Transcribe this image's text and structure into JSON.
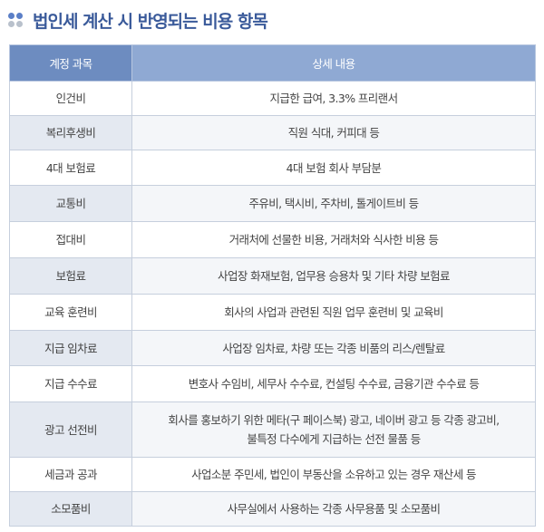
{
  "title": "법인세 계산 시 반영되는 비용 항목",
  "colors": {
    "title": "#3a5a9a",
    "header_left": "#6d8cc0",
    "header_right": "#8fa9d3",
    "dot_blue": "#5b7fc7",
    "dot_gray": "#b9c1cc"
  },
  "table": {
    "headers": [
      "계정 과목",
      "상세 내용"
    ],
    "rows": [
      {
        "account": "인건비",
        "detail": "지급한 급여, 3.3% 프리랜서"
      },
      {
        "account": "복리후생비",
        "detail": "직원 식대, 커피대 등"
      },
      {
        "account": "4대 보험료",
        "detail": "4대 보험 회사 부담분"
      },
      {
        "account": "교통비",
        "detail": "주유비, 택시비, 주차비, 톨게이트비 등"
      },
      {
        "account": "접대비",
        "detail": "거래처에 선물한 비용, 거래처와 식사한 비용 등"
      },
      {
        "account": "보험료",
        "detail": "사업장 화재보험, 업무용 승용차 및 기타 차량 보험료"
      },
      {
        "account": "교육 훈련비",
        "detail": "회사의 사업과 관련된 직원 업무 훈련비 및 교육비"
      },
      {
        "account": "지급 임차료",
        "detail": "사업장 임차료, 차량 또는 각종 비품의 리스/렌탈료"
      },
      {
        "account": "지급 수수료",
        "detail": "변호사 수임비, 세무사 수수료, 컨설팅 수수료, 금융기관 수수료 등"
      },
      {
        "account": "광고 선전비",
        "detail": "회사를 홍보하기 위한 메타(구 페이스북) 광고, 네이버 광고 등 각종 광고비,",
        "detail2": "불특정 다수에게 지급하는 선전 물품 등"
      },
      {
        "account": "세금과 공과",
        "detail": "사업소분 주민세, 법인이 부동산을 소유하고 있는 경우 재산세 등"
      },
      {
        "account": "소모품비",
        "detail": "사무실에서 사용하는 각종 사무용품 및 소모품비"
      }
    ]
  }
}
